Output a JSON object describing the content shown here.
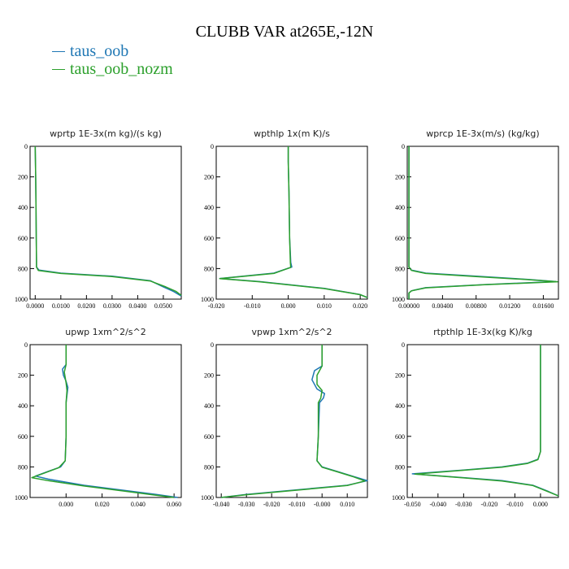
{
  "title": "CLUBB VAR at265E,-12N",
  "legend": [
    {
      "name": "taus_oob",
      "color": "#1f77b4"
    },
    {
      "name": "taus_oob_nozm",
      "color": "#2ca02c"
    }
  ],
  "chart_data": [
    {
      "type": "line",
      "title": "wprtp  1E-3x(m kg)/(s kg)",
      "xlim": [
        -0.002,
        0.057
      ],
      "ylim": [
        1000,
        0
      ],
      "xticks": [
        0,
        0.01,
        0.02,
        0.03,
        0.04,
        0.05
      ],
      "xtick_labels": [
        "0.0000",
        "0.0100",
        "0.0200",
        "0.0300",
        "0.0400",
        "0.0500"
      ],
      "yticks": [
        0,
        200,
        400,
        600,
        800,
        1000
      ],
      "series": [
        {
          "name": "taus_oob",
          "points": [
            [
              0,
              0
            ],
            [
              0.0002,
              200
            ],
            [
              0.0003,
              400
            ],
            [
              0.0004,
              600
            ],
            [
              0.0005,
              750
            ],
            [
              0.0005,
              790
            ],
            [
              0.0015,
              810
            ],
            [
              0.01,
              830
            ],
            [
              0.03,
              850
            ],
            [
              0.045,
              880
            ],
            [
              0.05,
              920
            ],
            [
              0.054,
              950
            ],
            [
              0.057,
              980
            ]
          ]
        },
        {
          "name": "taus_oob_nozm",
          "points": [
            [
              0,
              0
            ],
            [
              0.0002,
              200
            ],
            [
              0.0003,
              400
            ],
            [
              0.0004,
              600
            ],
            [
              0.0005,
              750
            ],
            [
              0.0005,
              790
            ],
            [
              0.0012,
              812
            ],
            [
              0.01,
              832
            ],
            [
              0.03,
              852
            ],
            [
              0.045,
              882
            ],
            [
              0.051,
              920
            ],
            [
              0.055,
              950
            ],
            [
              0.057,
              975
            ]
          ]
        }
      ]
    },
    {
      "type": "line",
      "title": "wpthlp  1x(m K)/s",
      "xlim": [
        -0.02,
        0.022
      ],
      "ylim": [
        1000,
        0
      ],
      "xticks": [
        -0.02,
        -0.01,
        0,
        0.01,
        0.02
      ],
      "xtick_labels": [
        "-0.020",
        "-0.010",
        "0.000",
        "0.010",
        "0.020"
      ],
      "yticks": [
        0,
        200,
        400,
        600,
        800,
        1000
      ],
      "series": [
        {
          "name": "taus_oob",
          "points": [
            [
              0,
              0
            ],
            [
              0,
              100
            ],
            [
              0.0002,
              300
            ],
            [
              0.0004,
              600
            ],
            [
              0.0007,
              760
            ],
            [
              0.001,
              790
            ],
            [
              -0.004,
              830
            ],
            [
              -0.019,
              865
            ],
            [
              -0.008,
              885
            ],
            [
              0.01,
              930
            ],
            [
              0.02,
              970
            ],
            [
              0.022,
              990
            ]
          ]
        },
        {
          "name": "taus_oob_nozm",
          "points": [
            [
              0,
              0
            ],
            [
              0,
              100
            ],
            [
              0.0002,
              300
            ],
            [
              0.0004,
              600
            ],
            [
              0.0006,
              760
            ],
            [
              0.0007,
              792
            ],
            [
              -0.004,
              832
            ],
            [
              -0.019,
              866
            ],
            [
              -0.008,
              886
            ],
            [
              0.01,
              931
            ],
            [
              0.02,
              971
            ],
            [
              0.022,
              990
            ]
          ]
        }
      ]
    },
    {
      "type": "line",
      "title": "wprcp  1E-3x(m/s) (kg/kg)",
      "xlim": [
        -0.0002,
        0.0178
      ],
      "ylim": [
        1000,
        0
      ],
      "xticks": [
        0,
        0.004,
        0.008,
        0.012,
        0.016
      ],
      "xtick_labels": [
        "0.00000",
        "0.00400",
        "0.00800",
        "0.01200",
        "0.01600"
      ],
      "yticks": [
        0,
        200,
        400,
        600,
        800,
        1000
      ],
      "series": [
        {
          "name": "taus_oob",
          "points": [
            [
              0,
              0
            ],
            [
              0,
              700
            ],
            [
              0,
              790
            ],
            [
              0.0003,
              810
            ],
            [
              0.002,
              830
            ],
            [
              0.008,
              850
            ],
            [
              0.014,
              870
            ],
            [
              0.0175,
              885
            ],
            [
              0.009,
              905
            ],
            [
              0.002,
              925
            ],
            [
              0.0003,
              945
            ],
            [
              0,
              960
            ],
            [
              0,
              1000
            ]
          ]
        },
        {
          "name": "taus_oob_nozm",
          "points": [
            [
              0,
              0
            ],
            [
              0,
              700
            ],
            [
              0,
              790
            ],
            [
              0.0003,
              812
            ],
            [
              0.002,
              832
            ],
            [
              0.008,
              852
            ],
            [
              0.014,
              872
            ],
            [
              0.0177,
              886
            ],
            [
              0.009,
              906
            ],
            [
              0.002,
              926
            ],
            [
              0.0003,
              946
            ],
            [
              0,
              960
            ],
            [
              0,
              1000
            ]
          ]
        }
      ]
    },
    {
      "type": "line",
      "title": "upwp  1xm^2/s^2",
      "xlim": [
        -0.02,
        0.064
      ],
      "ylim": [
        1000,
        0
      ],
      "xticks": [
        0,
        0.02,
        0.04,
        0.06
      ],
      "xtick_labels": [
        "0.000",
        "0.020",
        "0.040",
        "0.060"
      ],
      "yticks": [
        0,
        200,
        400,
        600,
        800,
        1000
      ],
      "series": [
        {
          "name": "taus_oob",
          "points": [
            [
              0,
              0
            ],
            [
              0,
              130
            ],
            [
              -0.002,
              160
            ],
            [
              -0.0015,
              200
            ],
            [
              0,
              240
            ],
            [
              0.001,
              280
            ],
            [
              0.0005,
              330
            ],
            [
              0,
              380
            ],
            [
              0,
              600
            ],
            [
              -0.0005,
              760
            ],
            [
              -0.003,
              800
            ],
            [
              -0.01,
              830
            ],
            [
              -0.017,
              860
            ],
            [
              -0.01,
              880
            ],
            [
              0.01,
              920
            ],
            [
              0.03,
              950
            ],
            [
              0.05,
              980
            ],
            [
              0.062,
              1000
            ]
          ]
        },
        {
          "name": "taus_oob_nozm",
          "points": [
            [
              0,
              0
            ],
            [
              0,
              130
            ],
            [
              -0.001,
              180
            ],
            [
              0,
              250
            ],
            [
              0.0005,
              300
            ],
            [
              0,
              380
            ],
            [
              0,
              600
            ],
            [
              -0.0005,
              760
            ],
            [
              -0.004,
              805
            ],
            [
              -0.012,
              840
            ],
            [
              -0.019,
              870
            ],
            [
              -0.01,
              890
            ],
            [
              0.01,
              925
            ],
            [
              0.03,
              955
            ],
            [
              0.05,
              985
            ],
            [
              0.06,
              1000
            ]
          ]
        }
      ]
    },
    {
      "type": "line",
      "title": "vpwp  1xm^2/s^2",
      "xlim": [
        -0.042,
        0.018
      ],
      "ylim": [
        1000,
        0
      ],
      "xticks": [
        -0.04,
        -0.03,
        -0.02,
        -0.01,
        0,
        0.01
      ],
      "xtick_labels": [
        "-0.040",
        "-0.030",
        "-0.020",
        "-0.010",
        "-0.000",
        "0.010"
      ],
      "yticks": [
        0,
        200,
        400,
        600,
        800,
        1000
      ],
      "series": [
        {
          "name": "taus_oob",
          "points": [
            [
              0,
              0
            ],
            [
              0,
              140
            ],
            [
              -0.003,
              170
            ],
            [
              -0.004,
              230
            ],
            [
              -0.002,
              290
            ],
            [
              0.001,
              320
            ],
            [
              0.0005,
              350
            ],
            [
              -0.001,
              380
            ],
            [
              -0.0015,
              600
            ],
            [
              -0.002,
              760
            ],
            [
              0,
              800
            ],
            [
              0.006,
              830
            ],
            [
              0.012,
              860
            ],
            [
              0.018,
              890
            ],
            [
              0.01,
              920
            ],
            [
              -0.01,
              950
            ],
            [
              -0.03,
              980
            ],
            [
              -0.04,
              1000
            ]
          ]
        },
        {
          "name": "taus_oob_nozm",
          "points": [
            [
              0,
              0
            ],
            [
              0,
              140
            ],
            [
              -0.002,
              200
            ],
            [
              -0.002,
              260
            ],
            [
              0,
              300
            ],
            [
              -0.0005,
              350
            ],
            [
              -0.0015,
              380
            ],
            [
              -0.0015,
              600
            ],
            [
              -0.002,
              760
            ],
            [
              0,
              802
            ],
            [
              0.006,
              832
            ],
            [
              0.012,
              862
            ],
            [
              0.017,
              892
            ],
            [
              0.01,
              922
            ],
            [
              -0.01,
              952
            ],
            [
              -0.03,
              982
            ],
            [
              -0.04,
              1000
            ]
          ]
        }
      ]
    },
    {
      "type": "line",
      "title": "rtpthlp  1E-3x(kg K)/kg",
      "xlim": [
        -0.052,
        0.007
      ],
      "ylim": [
        1000,
        0
      ],
      "xticks": [
        -0.05,
        -0.04,
        -0.03,
        -0.02,
        -0.01,
        0
      ],
      "xtick_labels": [
        "-0.050",
        "-0.040",
        "-0.030",
        "-0.020",
        "-0.010",
        "0.000"
      ],
      "yticks": [
        0,
        200,
        400,
        600,
        800,
        1000
      ],
      "series": [
        {
          "name": "taus_oob",
          "points": [
            [
              0,
              0
            ],
            [
              0,
              400
            ],
            [
              0,
              700
            ],
            [
              -0.001,
              750
            ],
            [
              -0.005,
              775
            ],
            [
              -0.015,
              800
            ],
            [
              -0.03,
              820
            ],
            [
              -0.05,
              845
            ],
            [
              -0.03,
              870
            ],
            [
              -0.015,
              890
            ],
            [
              -0.003,
              920
            ],
            [
              0.003,
              960
            ],
            [
              0.007,
              990
            ]
          ]
        },
        {
          "name": "taus_oob_nozm",
          "points": [
            [
              0,
              0
            ],
            [
              0,
              400
            ],
            [
              0,
              700
            ],
            [
              -0.001,
              752
            ],
            [
              -0.005,
              777
            ],
            [
              -0.015,
              802
            ],
            [
              -0.03,
              822
            ],
            [
              -0.049,
              847
            ],
            [
              -0.03,
              872
            ],
            [
              -0.015,
              892
            ],
            [
              -0.003,
              922
            ],
            [
              0.003,
              962
            ],
            [
              0.007,
              990
            ]
          ]
        }
      ]
    }
  ]
}
